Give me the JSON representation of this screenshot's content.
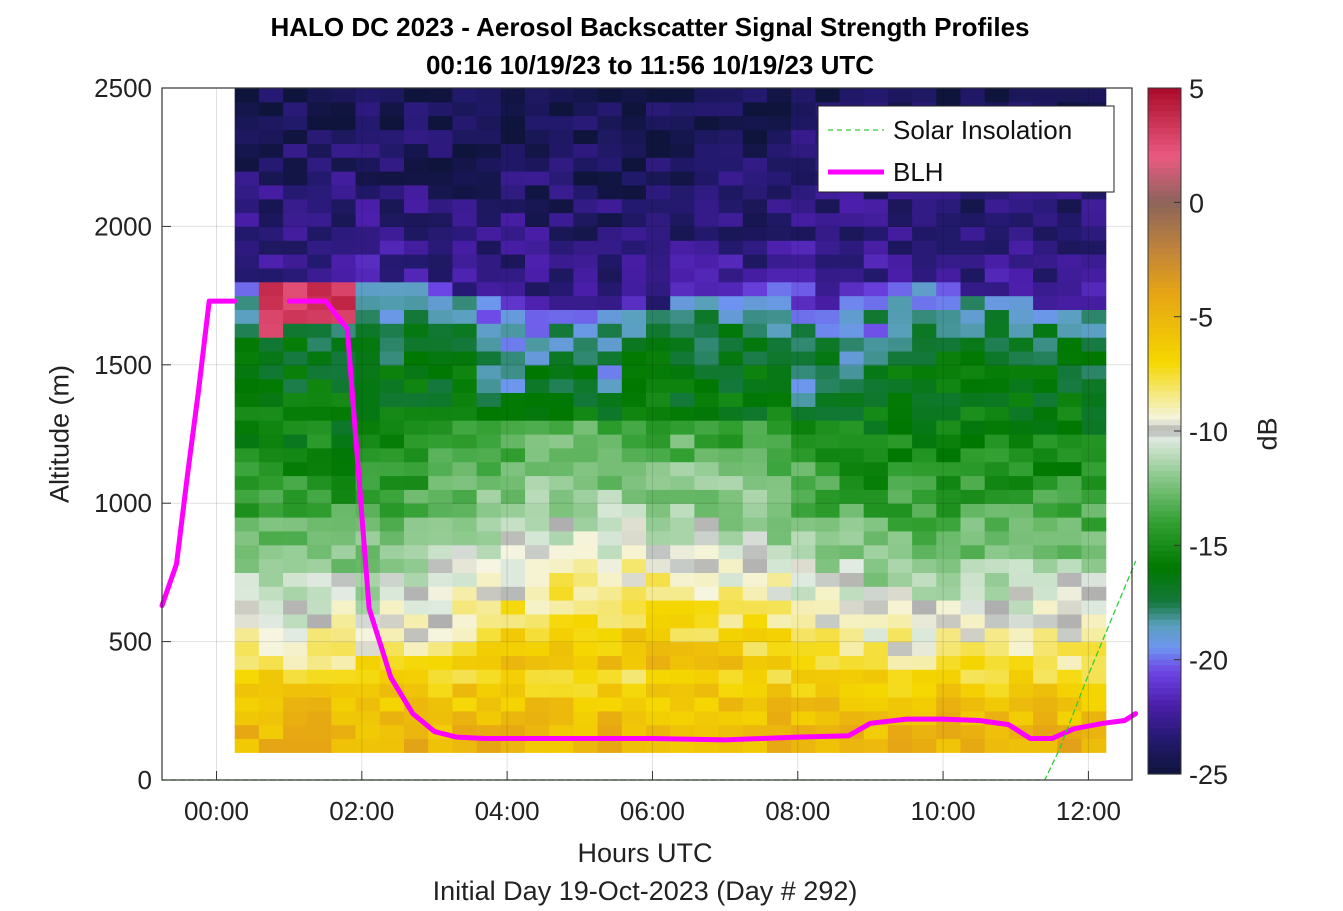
{
  "chart_data": {
    "type": "heatmap",
    "title": "HALO DC 2023 - Aerosol Backscatter Signal Strength Profiles",
    "subtitle": "00:16 10/19/23 to 11:56 10/19/23  UTC",
    "xlabel": "Hours UTC",
    "ylabel": "Altitude (m)",
    "footer": "Initial Day 19-Oct-2023 (Day # 292)",
    "colorbar_label": "dB",
    "x_tick_labels": [
      "00:00",
      "02:00",
      "04:00",
      "06:00",
      "08:00",
      "10:00",
      "12:00"
    ],
    "x_tick_hours": [
      0,
      2,
      4,
      6,
      8,
      10,
      12
    ],
    "xlim_hours": [
      -0.75,
      12.6
    ],
    "ylim": [
      0,
      2500
    ],
    "y_ticks": [
      0,
      500,
      1000,
      1500,
      2000,
      2500
    ],
    "clim": [
      -25,
      5
    ],
    "colorbar_ticks": [
      5,
      0,
      -5,
      -10,
      -15,
      -20,
      -25
    ],
    "heatmap": {
      "x_start_hour": 0.25,
      "x_end_hour": 11.92,
      "column_width_hours": 0.333,
      "y_start_m": 100,
      "y_end_m": 2500,
      "row_height_m": 50,
      "description_profile": "near-surface aerosol layer about -6 to -4 dB below ~400 m, white/light green -10 to -13 dB up to ~900 m, green -14 to -17 dB up to ~1700 m, blue/purple -19 to -25 dB free troposphere above",
      "sample_profile_db": [
        {
          "altitude_m": 150,
          "db": -5
        },
        {
          "altitude_m": 300,
          "db": -6
        },
        {
          "altitude_m": 500,
          "db": -9
        },
        {
          "altitude_m": 700,
          "db": -11
        },
        {
          "altitude_m": 1000,
          "db": -14
        },
        {
          "altitude_m": 1300,
          "db": -16
        },
        {
          "altitude_m": 1600,
          "db": -17
        },
        {
          "altitude_m": 1800,
          "db": -20
        },
        {
          "altitude_m": 2100,
          "db": -23
        },
        {
          "altitude_m": 2400,
          "db": -24
        }
      ]
    },
    "series": [
      {
        "name": "BLH",
        "color": "#ff00ff",
        "x_hours": [
          -0.75,
          -0.55,
          -0.4,
          -0.25,
          -0.1,
          0.25,
          0.5,
          1.0,
          1.5,
          1.8,
          2.1,
          2.4,
          2.7,
          3.0,
          3.3,
          3.7,
          4.0,
          5.0,
          6.0,
          7.0,
          7.5,
          8.0,
          8.7,
          9.0,
          9.5,
          10.0,
          10.5,
          10.9,
          11.2,
          11.5,
          11.8,
          12.2,
          12.5,
          12.65
        ],
        "y": [
          630,
          780,
          1100,
          1400,
          1730,
          1730,
          null,
          1730,
          1730,
          1630,
          620,
          370,
          240,
          175,
          155,
          150,
          150,
          150,
          150,
          145,
          150,
          155,
          160,
          205,
          220,
          220,
          215,
          200,
          150,
          150,
          185,
          205,
          215,
          240
        ]
      },
      {
        "name": "Solar Insolation",
        "color": "#33cc33",
        "x_hours": [
          -0.75,
          11.4,
          11.6,
          12.0,
          12.3,
          12.65
        ],
        "y": [
          0,
          0,
          110,
          380,
          570,
          790
        ]
      }
    ],
    "legend": {
      "location": "top-right",
      "entries": [
        {
          "label": "Solar Insolation",
          "style": "dashed",
          "color": "#33cc33"
        },
        {
          "label": "BLH",
          "style": "solid-thick",
          "color": "#ff00ff"
        }
      ]
    },
    "grid": true
  }
}
